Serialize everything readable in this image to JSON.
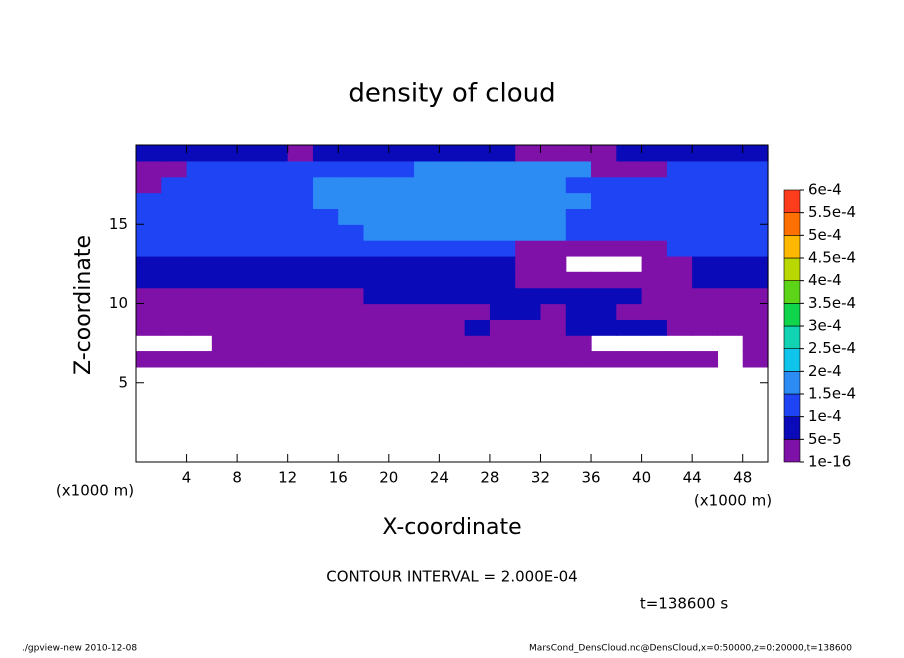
{
  "chart_data": {
    "type": "heatmap",
    "title": "density of cloud",
    "xlabel": "X-coordinate",
    "ylabel": "Z-coordinate",
    "x_unit": "(x1000 m)",
    "y_unit": "(x1000 m)",
    "annotation": "CONTOUR INTERVAL = 2.000E-04",
    "time_label": "t=138600 s",
    "footer_left": "./gpview-new  2010-12-08",
    "footer_right": "MarsCond_DensCloud.nc@DensCloud,x=0:50000,z=0:20000,t=138600",
    "xlim": [
      0,
      50
    ],
    "ylim": [
      0,
      20
    ],
    "xticks": [
      4,
      8,
      12,
      16,
      20,
      24,
      28,
      32,
      36,
      40,
      44,
      48
    ],
    "yticks": [
      5,
      10,
      15
    ],
    "x": [
      1,
      3,
      5,
      7,
      9,
      11,
      13,
      15,
      17,
      19,
      21,
      23,
      25,
      27,
      29,
      31,
      33,
      35,
      37,
      39,
      41,
      43,
      45,
      47,
      49
    ],
    "y": [
      6.5,
      7.5,
      8.5,
      9.5,
      10.5,
      11.5,
      12.5,
      13.5,
      14.5,
      15.5,
      16.5,
      17.5,
      18.5,
      19.5
    ],
    "field": [
      [
        2e-05,
        2e-05,
        2e-05,
        2e-05,
        2e-05,
        2e-05,
        2e-05,
        2e-05,
        2e-05,
        2e-05,
        2e-05,
        2e-05,
        2e-05,
        2e-05,
        2e-05,
        2e-05,
        2e-05,
        2e-05,
        2e-05,
        2e-05,
        2e-05,
        2e-05,
        2e-05,
        null,
        2e-05
      ],
      [
        null,
        null,
        null,
        2e-05,
        2e-05,
        2e-05,
        2e-05,
        2e-05,
        2e-05,
        2e-05,
        2e-05,
        2e-05,
        2e-05,
        2e-05,
        2e-05,
        2e-05,
        2e-05,
        2e-05,
        null,
        null,
        null,
        null,
        null,
        null,
        2e-05
      ],
      [
        2e-05,
        2e-05,
        2e-05,
        2e-05,
        2e-05,
        2e-05,
        2e-05,
        2e-05,
        2e-05,
        2e-05,
        2e-05,
        2e-05,
        2e-05,
        7e-05,
        2e-05,
        2e-05,
        2e-05,
        7e-05,
        7e-05,
        7e-05,
        7e-05,
        2e-05,
        2e-05,
        2e-05,
        2e-05
      ],
      [
        2e-05,
        2e-05,
        2e-05,
        2e-05,
        2e-05,
        2e-05,
        2e-05,
        2e-05,
        2e-05,
        2e-05,
        2e-05,
        2e-05,
        2e-05,
        2e-05,
        7e-05,
        7e-05,
        2e-05,
        7e-05,
        7e-05,
        2e-05,
        2e-05,
        2e-05,
        2e-05,
        2e-05,
        2e-05
      ],
      [
        2e-05,
        2e-05,
        2e-05,
        2e-05,
        2e-05,
        2e-05,
        2e-05,
        2e-05,
        2e-05,
        7e-05,
        7e-05,
        7e-05,
        7e-05,
        7e-05,
        7e-05,
        7e-05,
        7e-05,
        7e-05,
        7e-05,
        7e-05,
        2e-05,
        2e-05,
        2e-05,
        2e-05,
        2e-05
      ],
      [
        7e-05,
        7e-05,
        7e-05,
        7e-05,
        7e-05,
        7e-05,
        7e-05,
        7e-05,
        7e-05,
        7e-05,
        7e-05,
        7e-05,
        7e-05,
        7e-05,
        7e-05,
        2e-05,
        2e-05,
        2e-05,
        2e-05,
        2e-05,
        2e-05,
        2e-05,
        7e-05,
        7e-05,
        7e-05
      ],
      [
        7e-05,
        7e-05,
        7e-05,
        7e-05,
        7e-05,
        7e-05,
        7e-05,
        7e-05,
        7e-05,
        7e-05,
        7e-05,
        7e-05,
        7e-05,
        7e-05,
        7e-05,
        2e-05,
        2e-05,
        null,
        null,
        null,
        2e-05,
        2e-05,
        7e-05,
        7e-05,
        7e-05
      ],
      [
        0.00012,
        0.00012,
        0.00012,
        0.00012,
        0.00012,
        0.00012,
        0.00012,
        0.00012,
        0.00012,
        0.00012,
        0.00012,
        0.00012,
        0.00012,
        0.00012,
        0.00012,
        2e-05,
        2e-05,
        2e-05,
        2e-05,
        2e-05,
        2e-05,
        0.00012,
        0.00012,
        0.00012,
        0.00012
      ],
      [
        0.00012,
        0.00012,
        0.00012,
        0.00012,
        0.00012,
        0.00012,
        0.00012,
        0.00012,
        0.00012,
        0.00016,
        0.00016,
        0.00016,
        0.00016,
        0.00016,
        0.00016,
        0.00016,
        0.00016,
        0.00012,
        0.00012,
        0.00012,
        0.00012,
        0.00012,
        0.00012,
        0.00012,
        0.00012
      ],
      [
        0.00012,
        0.00012,
        0.00012,
        0.00012,
        0.00012,
        0.00012,
        0.00012,
        0.00012,
        0.00016,
        0.00016,
        0.00016,
        0.00016,
        0.00016,
        0.00016,
        0.00016,
        0.00016,
        0.00016,
        0.00012,
        0.00012,
        0.00012,
        0.00012,
        0.00012,
        0.00012,
        0.00012,
        0.00012
      ],
      [
        0.00012,
        0.00012,
        0.00012,
        0.00012,
        0.00012,
        0.00012,
        0.00012,
        0.00016,
        0.00016,
        0.00016,
        0.00016,
        0.00016,
        0.00016,
        0.00016,
        0.00016,
        0.00016,
        0.00016,
        0.00016,
        0.00012,
        0.00012,
        0.00012,
        0.00012,
        0.00012,
        0.00012,
        0.00012
      ],
      [
        2e-05,
        0.00012,
        0.00012,
        0.00012,
        0.00012,
        0.00012,
        0.00012,
        0.00016,
        0.00016,
        0.00016,
        0.00016,
        0.00016,
        0.00016,
        0.00016,
        0.00016,
        0.00016,
        0.00016,
        0.00012,
        0.00012,
        0.00012,
        0.00012,
        0.00012,
        0.00012,
        0.00012,
        0.00012
      ],
      [
        2e-05,
        2e-05,
        0.00012,
        0.00012,
        0.00012,
        0.00012,
        0.00012,
        0.00012,
        0.00012,
        0.00012,
        0.00012,
        0.00016,
        0.00016,
        0.00016,
        0.00016,
        0.00016,
        0.00016,
        0.00016,
        2e-05,
        2e-05,
        2e-05,
        0.00012,
        0.00012,
        0.00012,
        0.00012
      ],
      [
        7e-05,
        7e-05,
        7e-05,
        7e-05,
        7e-05,
        7e-05,
        2e-05,
        7e-05,
        7e-05,
        7e-05,
        7e-05,
        7e-05,
        7e-05,
        7e-05,
        7e-05,
        2e-05,
        2e-05,
        2e-05,
        2e-05,
        7e-05,
        7e-05,
        7e-05,
        7e-05,
        7e-05,
        7e-05
      ]
    ],
    "colorbar": {
      "levels": [
        {
          "value": 1e-16,
          "label": "1e-16"
        },
        {
          "value": 5e-05,
          "label": "5e-5"
        },
        {
          "value": 0.0001,
          "label": "1e-4"
        },
        {
          "value": 0.00015,
          "label": "1.5e-4"
        },
        {
          "value": 0.0002,
          "label": "2e-4"
        },
        {
          "value": 0.00025,
          "label": "2.5e-4"
        },
        {
          "value": 0.0003,
          "label": "3e-4"
        },
        {
          "value": 0.00035,
          "label": "3.5e-4"
        },
        {
          "value": 0.0004,
          "label": "4e-4"
        },
        {
          "value": 0.00045,
          "label": "4.5e-4"
        },
        {
          "value": 0.0005,
          "label": "5e-4"
        },
        {
          "value": 0.00055,
          "label": "5.5e-4"
        },
        {
          "value": 0.0006,
          "label": "6e-4"
        }
      ],
      "colors": [
        "#7f10a8",
        "#0a0ab8",
        "#1f44f4",
        "#2c8cf4",
        "#10c4ec",
        "#12d2b4",
        "#10d44c",
        "#5cd418",
        "#b8d800",
        "#ffb800",
        "#ff7000",
        "#ff3c1c",
        "#ff9090"
      ]
    }
  }
}
